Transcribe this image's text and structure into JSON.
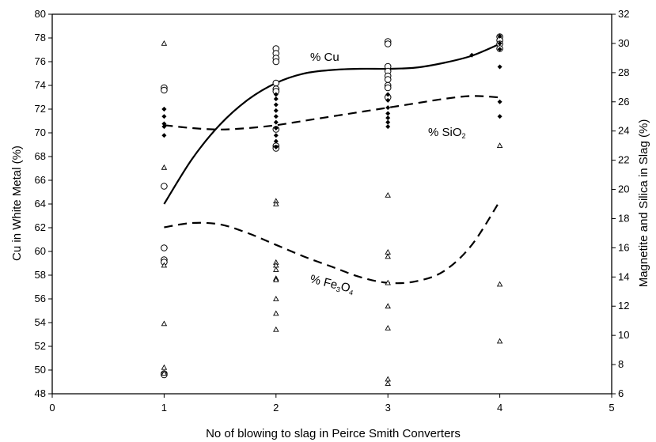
{
  "chart_data": {
    "type": "scatter",
    "xlabel": "No of blowing to slag in Peirce Smith Converters",
    "ylabel_left": "Cu in White Metal (%)",
    "ylabel_right": "Magnetite and Silica in Slag (%)",
    "xlim": [
      0,
      5
    ],
    "ylim_left": [
      48,
      80
    ],
    "ylim_right": [
      6,
      32
    ],
    "xticks": [
      "0",
      "1",
      "2",
      "3",
      "4",
      "5"
    ],
    "yticks_left": [
      "48",
      "50",
      "52",
      "54",
      "56",
      "58",
      "60",
      "62",
      "64",
      "66",
      "68",
      "70",
      "72",
      "74",
      "76",
      "78",
      "80"
    ],
    "yticks_right": [
      "6",
      "8",
      "10",
      "12",
      "14",
      "16",
      "18",
      "20",
      "22",
      "24",
      "26",
      "28",
      "30",
      "32"
    ],
    "grid": false,
    "series": [
      {
        "label_main": "% Cu",
        "label_sub": "",
        "label_tail": "",
        "marker": "open-circle",
        "axis": "left",
        "points": [
          [
            1,
            73.8
          ],
          [
            1,
            73.6
          ],
          [
            1,
            65.5
          ],
          [
            1,
            60.3
          ],
          [
            1,
            59.3
          ],
          [
            1,
            59.1
          ],
          [
            1,
            49.7
          ],
          [
            1,
            49.6
          ],
          [
            2,
            77.1
          ],
          [
            2,
            76.7
          ],
          [
            2,
            76.3
          ],
          [
            2,
            76.0
          ],
          [
            2,
            74.2
          ],
          [
            2,
            73.7
          ],
          [
            2,
            73.5
          ],
          [
            2,
            70.3
          ],
          [
            2,
            68.9
          ],
          [
            2,
            68.7
          ],
          [
            3,
            77.7
          ],
          [
            3,
            77.5
          ],
          [
            3,
            75.6
          ],
          [
            3,
            75.2
          ],
          [
            3,
            74.8
          ],
          [
            3,
            74.5
          ],
          [
            3,
            74.0
          ],
          [
            3,
            73.8
          ],
          [
            3,
            73.0
          ],
          [
            4,
            78.1
          ],
          [
            4,
            77.8
          ],
          [
            4,
            77.5
          ],
          [
            4,
            77.1
          ]
        ],
        "fit": [
          [
            1,
            64.0
          ],
          [
            1.25,
            67.8
          ],
          [
            1.5,
            70.7
          ],
          [
            1.75,
            72.8
          ],
          [
            2,
            74.2
          ],
          [
            2.25,
            75.0
          ],
          [
            2.5,
            75.3
          ],
          [
            2.75,
            75.4
          ],
          [
            3,
            75.4
          ],
          [
            3.25,
            75.5
          ],
          [
            3.5,
            75.9
          ],
          [
            3.75,
            76.5
          ],
          [
            4,
            77.5
          ]
        ],
        "fit_style": "solid"
      },
      {
        "label_main": "% SiO",
        "label_sub": "2",
        "label_tail": "",
        "marker": "filled-diamond",
        "axis": "right",
        "points": [
          [
            1,
            25.5
          ],
          [
            1,
            25.5
          ],
          [
            1,
            25.0
          ],
          [
            1,
            24.5
          ],
          [
            1,
            24.3
          ],
          [
            1,
            23.7
          ],
          [
            2,
            26.5
          ],
          [
            2,
            26.2
          ],
          [
            2,
            25.8
          ],
          [
            2,
            25.4
          ],
          [
            2,
            25.0
          ],
          [
            2,
            24.6
          ],
          [
            2,
            24.2
          ],
          [
            2,
            23.7
          ],
          [
            2,
            23.3
          ],
          [
            2,
            22.9
          ],
          [
            3,
            26.5
          ],
          [
            3,
            26.1
          ],
          [
            3,
            25.6
          ],
          [
            3,
            25.2
          ],
          [
            3,
            24.9
          ],
          [
            3,
            24.6
          ],
          [
            3,
            24.3
          ],
          [
            3.75,
            29.2
          ],
          [
            4,
            30.5
          ],
          [
            4,
            30.0
          ],
          [
            4,
            29.6
          ],
          [
            4,
            28.4
          ],
          [
            4,
            26.0
          ],
          [
            4,
            25.0
          ]
        ],
        "fit": [
          [
            1,
            24.4
          ],
          [
            1.25,
            24.2
          ],
          [
            1.5,
            24.1
          ],
          [
            1.75,
            24.2
          ],
          [
            2,
            24.4
          ],
          [
            2.25,
            24.7
          ],
          [
            2.5,
            25.0
          ],
          [
            2.75,
            25.3
          ],
          [
            3,
            25.6
          ],
          [
            3.25,
            25.9
          ],
          [
            3.5,
            26.2
          ],
          [
            3.75,
            26.4
          ],
          [
            4,
            26.3
          ]
        ],
        "fit_style": "dashed"
      },
      {
        "label_main": "% Fe",
        "label_sub": "3",
        "label_tail": "O",
        "label_sub2": "4",
        "marker": "open-triangle",
        "axis": "right",
        "points": [
          [
            1,
            30.0
          ],
          [
            1,
            21.5
          ],
          [
            1,
            14.8
          ],
          [
            1,
            10.8
          ],
          [
            1,
            7.8
          ],
          [
            1,
            7.4
          ],
          [
            2,
            19.2
          ],
          [
            2,
            19.0
          ],
          [
            2,
            15.0
          ],
          [
            2,
            14.8
          ],
          [
            2,
            14.5
          ],
          [
            2,
            13.9
          ],
          [
            2,
            13.8
          ],
          [
            2,
            12.5
          ],
          [
            2,
            11.5
          ],
          [
            2,
            10.4
          ],
          [
            3,
            19.6
          ],
          [
            3,
            15.7
          ],
          [
            3,
            15.4
          ],
          [
            3,
            13.6
          ],
          [
            3,
            12.0
          ],
          [
            3,
            10.5
          ],
          [
            3,
            7.0
          ],
          [
            3,
            6.7
          ],
          [
            4,
            23.0
          ],
          [
            4,
            13.5
          ],
          [
            4,
            9.6
          ]
        ],
        "fit": [
          [
            1,
            17.4
          ],
          [
            1.25,
            17.7
          ],
          [
            1.5,
            17.6
          ],
          [
            1.75,
            17.0
          ],
          [
            2,
            16.2
          ],
          [
            2.25,
            15.4
          ],
          [
            2.5,
            14.7
          ],
          [
            2.75,
            14.0
          ],
          [
            3,
            13.6
          ],
          [
            3.25,
            13.7
          ],
          [
            3.5,
            14.4
          ],
          [
            3.75,
            16.2
          ],
          [
            4,
            19.2
          ]
        ],
        "fit_style": "dashed"
      }
    ]
  }
}
